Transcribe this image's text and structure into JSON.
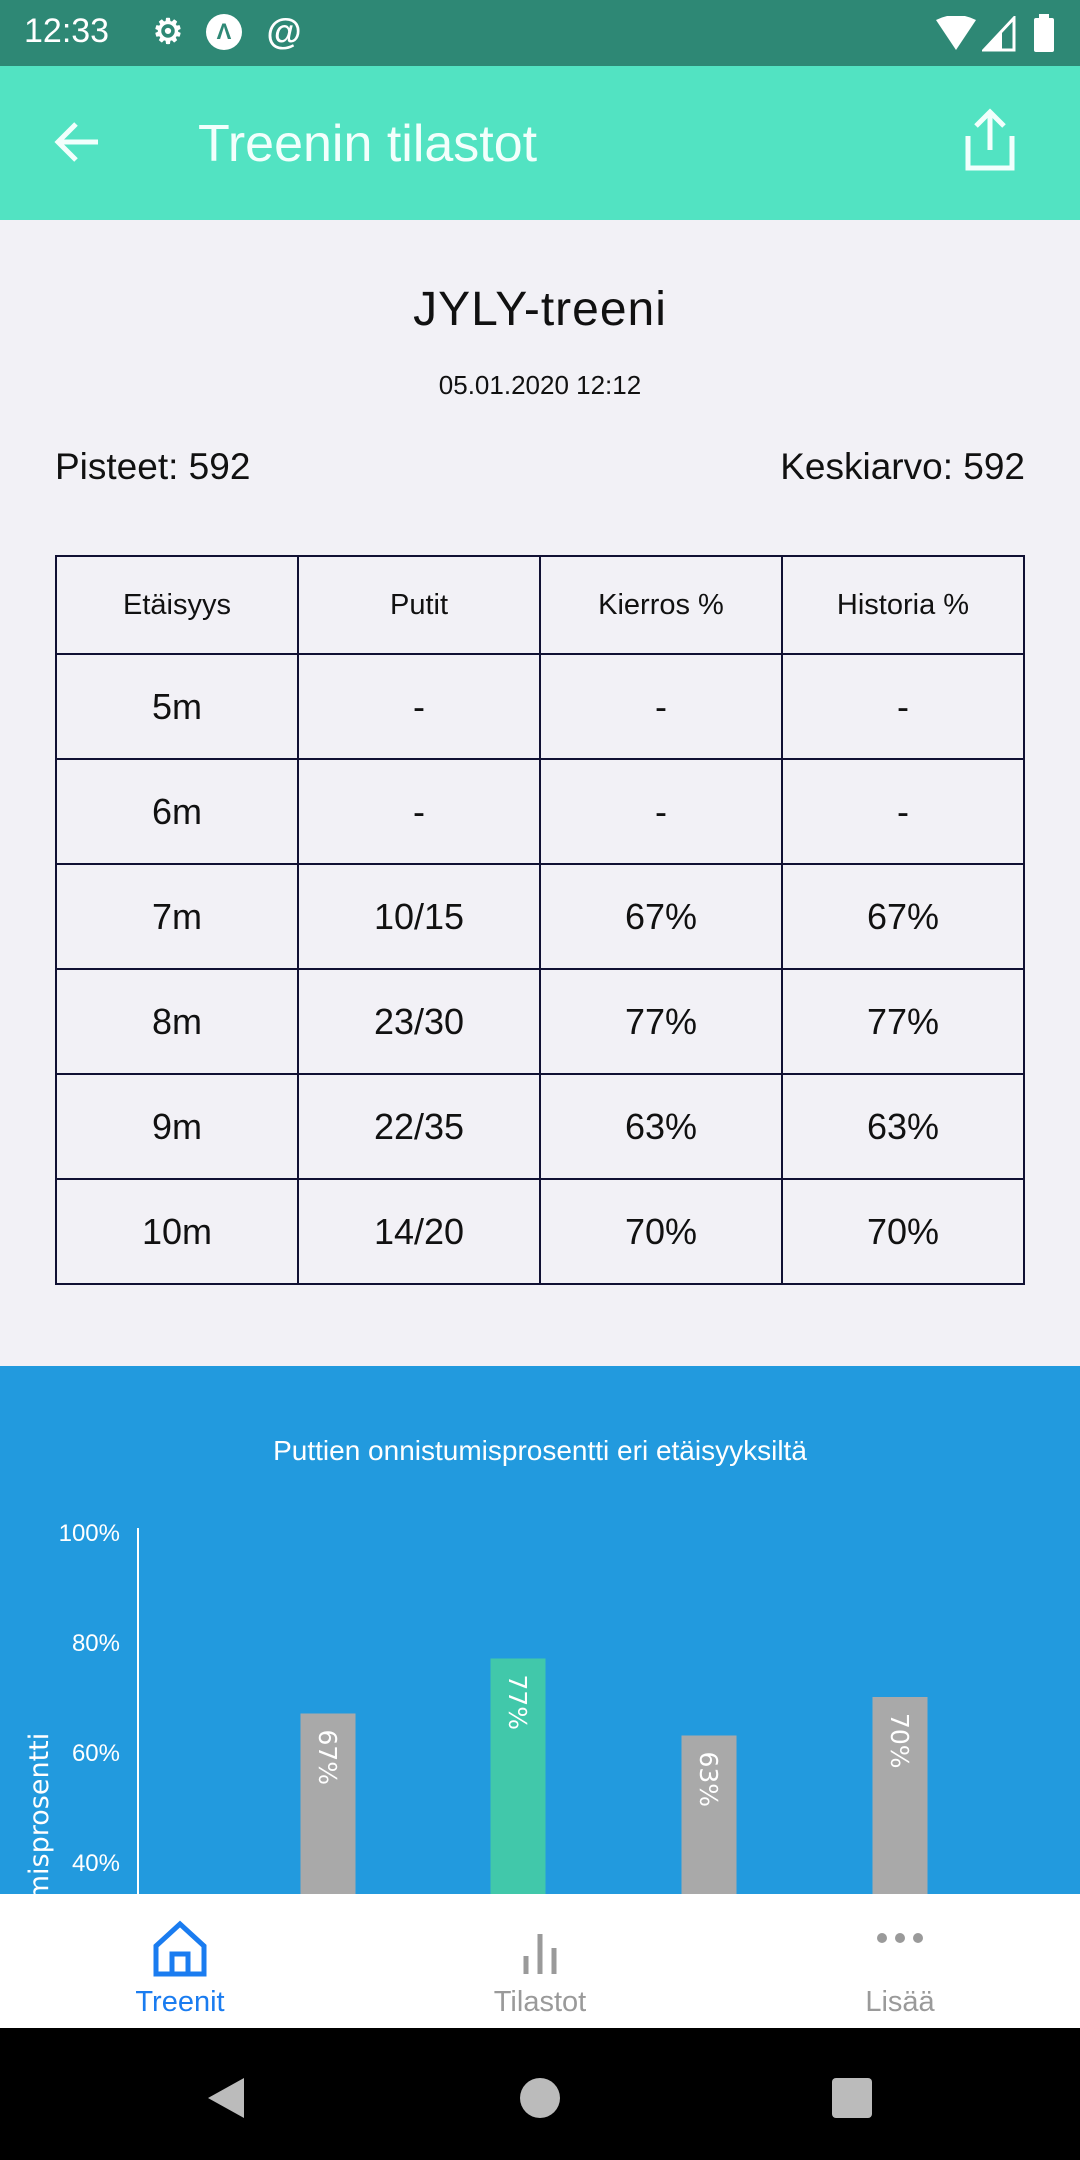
{
  "status_bar": {
    "time": "12:33",
    "icons": [
      "gear-icon",
      "a-icon",
      "at-icon",
      "wifi-icon",
      "signal-icon",
      "battery-icon"
    ]
  },
  "app_bar": {
    "title": "Treenin tilastot",
    "back_icon": "arrow-left-icon",
    "share_icon": "share-icon"
  },
  "session": {
    "name": "JYLY-treeni",
    "date": "05.01.2020 12:12",
    "points": "Pisteet: 592",
    "average": "Keskiarvo: 592"
  },
  "table": {
    "headers": [
      "Etäisyys",
      "Putit",
      "Kierros %",
      "Historia %"
    ],
    "rows": [
      [
        "5m",
        "-",
        "-",
        "-"
      ],
      [
        "6m",
        "-",
        "-",
        "-"
      ],
      [
        "7m",
        "10/15",
        "67%",
        "67%"
      ],
      [
        "8m",
        "23/30",
        "77%",
        "77%"
      ],
      [
        "9m",
        "22/35",
        "63%",
        "63%"
      ],
      [
        "10m",
        "14/20",
        "70%",
        "70%"
      ]
    ]
  },
  "chart_data": {
    "type": "bar",
    "title": "Puttien onnistumisprosentti eri etäisyyksiltä",
    "ylabel": "Onnistumisprosentti",
    "yticks": [
      "100%",
      "80%",
      "60%",
      "40%"
    ],
    "ylim": [
      0,
      100
    ],
    "values": [
      67,
      77,
      63,
      70
    ],
    "data_labels": [
      "67%",
      "77%",
      "63%",
      "70%"
    ],
    "colors": [
      "#a9a9a9",
      "#41c8aa",
      "#a9a9a9",
      "#a9a9a9"
    ],
    "background": "#229ade"
  },
  "bottom_nav": {
    "items": [
      {
        "label": "Treenit",
        "icon": "home-icon",
        "active": true
      },
      {
        "label": "Tilastot",
        "icon": "bar-chart-icon"
      },
      {
        "label": "Lisää",
        "icon": "more-icon"
      }
    ],
    "active_color": "#1a7cf0",
    "inactive_color": "#9a9a9a"
  }
}
